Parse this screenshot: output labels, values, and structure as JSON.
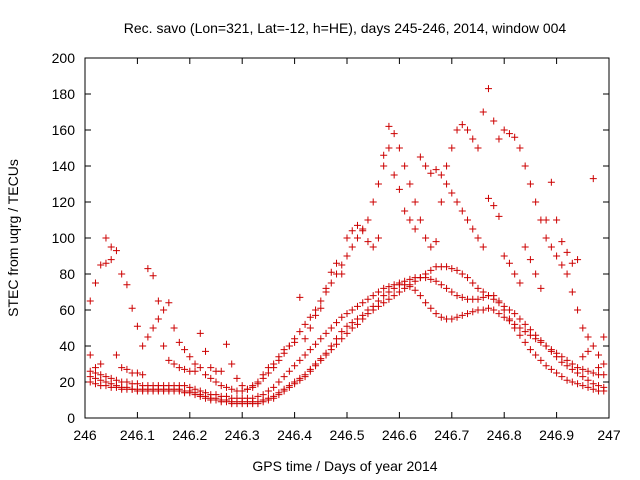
{
  "chart_data": {
    "type": "scatter",
    "title": "Rec. savo (Lon=321, Lat=-12, h=HE), days 245-246, 2014, window 004",
    "xlabel": "GPS time / Days of year 2014",
    "ylabel": "STEC from uqrg / TECUs",
    "xlim": [
      246,
      247
    ],
    "ylim": [
      0,
      200
    ],
    "x_ticks": [
      "246",
      "246.1",
      "246.2",
      "246.3",
      "246.4",
      "246.5",
      "246.6",
      "246.7",
      "246.8",
      "246.9",
      "247"
    ],
    "y_ticks": [
      "0",
      "20",
      "40",
      "60",
      "80",
      "100",
      "120",
      "140",
      "160",
      "180",
      "200"
    ],
    "grid": false,
    "legend": "none",
    "marker": "plus",
    "color": "#cc0000",
    "series": [
      {
        "name": "",
        "x": [
          246.01,
          246.02,
          246.03,
          246.04,
          246.05,
          246.06,
          246.07,
          246.08,
          246.09,
          246.1,
          246.11,
          246.12,
          246.13,
          246.14,
          246.15,
          246.16,
          246.17,
          246.18,
          246.19,
          246.2,
          246.21,
          246.22,
          246.23,
          246.24,
          246.25,
          246.26,
          246.27,
          246.28,
          246.29,
          246.3,
          246.31,
          246.32,
          246.33,
          246.34,
          246.35,
          246.36,
          246.37,
          246.38,
          246.39,
          246.4,
          246.41,
          246.42,
          246.43,
          246.44,
          246.45,
          246.46,
          246.47,
          246.48,
          246.49,
          246.5,
          246.51,
          246.52,
          246.53,
          246.54,
          246.55,
          246.56,
          246.57,
          246.58,
          246.59,
          246.6,
          246.61,
          246.62,
          246.63,
          246.64,
          246.65,
          246.66,
          246.67,
          246.68,
          246.69,
          246.7,
          246.71,
          246.72,
          246.73,
          246.74,
          246.75,
          246.76,
          246.77,
          246.78,
          246.79,
          246.8,
          246.81,
          246.82,
          246.83,
          246.84,
          246.85,
          246.86,
          246.87,
          246.88,
          246.89,
          246.9,
          246.91,
          246.92,
          246.93,
          246.94,
          246.95,
          246.96,
          246.97,
          246.98,
          246.99
        ],
        "y": [
          23,
          22,
          21,
          20,
          19,
          18,
          17,
          17,
          16,
          16,
          16,
          16,
          16,
          16,
          16,
          16,
          16,
          16,
          15,
          15,
          14,
          13,
          12,
          11,
          11,
          10,
          10,
          9,
          9,
          9,
          9,
          9,
          9,
          10,
          11,
          12,
          14,
          16,
          18,
          20,
          22,
          24,
          27,
          30,
          33,
          36,
          40,
          44,
          48,
          51,
          53,
          55,
          57,
          60,
          62,
          65,
          68,
          70,
          72,
          74,
          76,
          77,
          78,
          78,
          78,
          77,
          76,
          74,
          72,
          70,
          68,
          67,
          66,
          66,
          66,
          67,
          68,
          68,
          65,
          60,
          55,
          50,
          46,
          42,
          38,
          35,
          32,
          29,
          27,
          25,
          23,
          21,
          20,
          19,
          18,
          17,
          16,
          15,
          15
        ]
      },
      {
        "name": "",
        "x": [
          246.01,
          246.02,
          246.03,
          246.04,
          246.05,
          246.06,
          246.07,
          246.08,
          246.09,
          246.1,
          246.11,
          246.12,
          246.13,
          246.14,
          246.15,
          246.16,
          246.17,
          246.18,
          246.19,
          246.2,
          246.21,
          246.22,
          246.23,
          246.24,
          246.25,
          246.26,
          246.27,
          246.28,
          246.29,
          246.3,
          246.31,
          246.32,
          246.33,
          246.34,
          246.35,
          246.36,
          246.37,
          246.38,
          246.39,
          246.4,
          246.41,
          246.42,
          246.43,
          246.44,
          246.45,
          246.46,
          246.47,
          246.48,
          246.49,
          246.5,
          246.51,
          246.52,
          246.53,
          246.54,
          246.55,
          246.56,
          246.57,
          246.58,
          246.59,
          246.6,
          246.61,
          246.62,
          246.63,
          246.64,
          246.65,
          246.66,
          246.67,
          246.68,
          246.69,
          246.7,
          246.71,
          246.72,
          246.73,
          246.74,
          246.75,
          246.76,
          246.77,
          246.78,
          246.79,
          246.8,
          246.81,
          246.82,
          246.83,
          246.84,
          246.85,
          246.86,
          246.87,
          246.88,
          246.89,
          246.9,
          246.91,
          246.92,
          246.93,
          246.94,
          246.95,
          246.96,
          246.97,
          246.98,
          246.99
        ],
        "y": [
          26,
          25,
          24,
          23,
          22,
          21,
          20,
          20,
          19,
          19,
          18,
          18,
          18,
          18,
          18,
          18,
          18,
          18,
          18,
          17,
          16,
          15,
          14,
          13,
          13,
          12,
          12,
          11,
          11,
          11,
          11,
          11,
          12,
          13,
          15,
          17,
          20,
          23,
          26,
          29,
          32,
          35,
          38,
          41,
          44,
          47,
          50,
          53,
          56,
          58,
          60,
          62,
          64,
          66,
          68,
          70,
          72,
          73,
          74,
          75,
          74,
          73,
          71,
          68,
          64,
          61,
          58,
          56,
          55,
          55,
          56,
          57,
          58,
          59,
          60,
          60,
          61,
          60,
          58,
          56,
          54,
          52,
          50,
          48,
          46,
          44,
          42,
          40,
          38,
          36,
          34,
          32,
          30,
          28,
          27,
          26,
          25,
          24,
          24
        ]
      },
      {
        "name": "",
        "x": [
          246.01,
          246.02,
          246.03,
          246.04,
          246.05,
          246.06,
          246.07,
          246.08,
          246.09,
          246.1,
          246.11,
          246.12,
          246.13,
          246.14,
          246.15,
          246.16,
          246.17,
          246.18,
          246.19,
          246.2,
          246.21,
          246.22,
          246.23,
          246.24,
          246.25,
          246.26,
          246.27,
          246.28,
          246.29,
          246.3,
          246.31,
          246.32,
          246.33,
          246.34,
          246.35,
          246.36,
          246.37,
          246.38,
          246.39,
          246.4,
          246.41,
          246.42,
          246.43,
          246.44,
          246.45,
          246.46,
          246.47,
          246.48,
          246.49,
          246.5,
          246.51,
          246.52,
          246.53,
          246.54,
          246.55,
          246.56,
          246.57,
          246.58,
          246.59,
          246.6,
          246.61,
          246.62,
          246.63,
          246.64,
          246.65,
          246.66,
          246.67,
          246.68,
          246.69,
          246.7,
          246.71,
          246.72,
          246.73,
          246.74,
          246.75,
          246.76,
          246.77,
          246.78,
          246.79,
          246.8,
          246.81,
          246.82,
          246.83,
          246.84,
          246.85,
          246.86,
          246.87,
          246.88,
          246.89,
          246.9,
          246.91,
          246.92,
          246.93,
          246.94,
          246.95,
          246.96,
          246.97,
          246.98,
          246.99
        ],
        "y": [
          20,
          19,
          18,
          18,
          17,
          17,
          16,
          16,
          16,
          15,
          15,
          15,
          15,
          15,
          15,
          15,
          15,
          15,
          14,
          14,
          13,
          12,
          11,
          10,
          10,
          9,
          9,
          8,
          8,
          8,
          8,
          8,
          8,
          9,
          10,
          11,
          13,
          15,
          17,
          19,
          21,
          23,
          26,
          29,
          32,
          35,
          38,
          41,
          44,
          47,
          50,
          52,
          55,
          58,
          60,
          62,
          64,
          66,
          68,
          70,
          72,
          74,
          76,
          78,
          80,
          82,
          84,
          84,
          84,
          83,
          82,
          80,
          78,
          75,
          72,
          70,
          68,
          66,
          64,
          62,
          60,
          58,
          55,
          52,
          49,
          46,
          43,
          40,
          37,
          34,
          31,
          29,
          27,
          25,
          23,
          21,
          19,
          18,
          17
        ]
      },
      {
        "name": "",
        "x": [
          246.01,
          246.02,
          246.03,
          246.04,
          246.05,
          246.06,
          246.07,
          246.08,
          246.09,
          246.1,
          246.11,
          246.12,
          246.13,
          246.14,
          246.15,
          246.16,
          246.17,
          246.18,
          246.19,
          246.2,
          246.21,
          246.22,
          246.23,
          246.24,
          246.25,
          246.26,
          246.27,
          246.28,
          246.29,
          246.3,
          246.31,
          246.32,
          246.33,
          246.34,
          246.35,
          246.36,
          246.37,
          246.38,
          246.39,
          246.4,
          246.41,
          246.42,
          246.43,
          246.44,
          246.45,
          246.46,
          246.47,
          246.48,
          246.49,
          246.5,
          246.51,
          246.52,
          246.53,
          246.54,
          246.55,
          246.56,
          246.57,
          246.58,
          246.59,
          246.6,
          246.61,
          246.62,
          246.63,
          246.64,
          246.65,
          246.66,
          246.67,
          246.68,
          246.69,
          246.7,
          246.71,
          246.72,
          246.73,
          246.74,
          246.75,
          246.76,
          246.77,
          246.78,
          246.79,
          246.8,
          246.81,
          246.82,
          246.83,
          246.84,
          246.85,
          246.86,
          246.87,
          246.88,
          246.89,
          246.9,
          246.91,
          246.92,
          246.93,
          246.94,
          246.95,
          246.96,
          246.97,
          246.98,
          246.99
        ],
        "y": [
          65,
          75,
          85,
          86,
          88,
          93,
          80,
          74,
          61,
          51,
          40,
          45,
          50,
          55,
          60,
          64,
          50,
          42,
          38,
          34,
          30,
          28,
          24,
          22,
          20,
          18,
          17,
          16,
          15,
          15,
          16,
          17,
          19,
          22,
          25,
          28,
          32,
          36,
          40,
          44,
          48,
          52,
          56,
          60,
          65,
          70,
          75,
          80,
          85,
          90,
          95,
          100,
          105,
          110,
          120,
          130,
          140,
          150,
          158,
          150,
          140,
          130,
          120,
          110,
          100,
          95,
          98,
          120,
          140,
          150,
          160,
          163,
          160,
          155,
          150,
          170,
          183,
          165,
          155,
          160,
          158,
          156,
          150,
          140,
          130,
          120,
          110,
          100,
          95,
          90,
          85,
          80,
          70,
          60,
          50,
          45,
          40,
          35,
          30
        ]
      },
      {
        "name": "",
        "x": [
          246.01,
          246.02,
          246.03,
          246.04,
          246.05,
          246.06,
          246.07,
          246.08,
          246.09,
          246.1,
          246.11,
          246.12,
          246.13,
          246.14,
          246.15,
          246.16,
          246.17,
          246.18,
          246.19,
          246.2,
          246.21,
          246.22,
          246.23,
          246.24,
          246.25,
          246.26,
          246.27,
          246.28,
          246.29,
          246.3,
          246.31,
          246.32,
          246.33,
          246.34,
          246.35,
          246.36,
          246.37,
          246.38,
          246.39,
          246.4,
          246.41,
          246.42,
          246.43,
          246.44,
          246.45,
          246.46,
          246.47,
          246.48,
          246.49,
          246.5,
          246.51,
          246.52,
          246.53,
          246.54,
          246.55,
          246.56,
          246.57,
          246.58,
          246.59,
          246.6,
          246.61,
          246.62,
          246.63,
          246.64,
          246.65,
          246.66,
          246.67,
          246.68,
          246.69,
          246.7,
          246.71,
          246.72,
          246.73,
          246.74,
          246.75,
          246.76,
          246.77,
          246.78,
          246.79,
          246.8,
          246.81,
          246.82,
          246.83,
          246.84,
          246.85,
          246.86,
          246.87,
          246.88,
          246.89,
          246.9,
          246.91,
          246.92,
          246.93,
          246.94,
          246.95,
          246.96,
          246.97,
          246.98,
          246.99
        ],
        "y": [
          35,
          28,
          30,
          100,
          95,
          35,
          28,
          27,
          25,
          25,
          24,
          83,
          79,
          65,
          40,
          32,
          30,
          28,
          27,
          26,
          26,
          47,
          37,
          28,
          26,
          26,
          41,
          30,
          22,
          18,
          16,
          18,
          20,
          24,
          28,
          30,
          34,
          38,
          40,
          42,
          67,
          44,
          50,
          57,
          61,
          72,
          81,
          86,
          80,
          100,
          104,
          107,
          104,
          98,
          95,
          100,
          146,
          162,
          135,
          127,
          115,
          110,
          105,
          145,
          140,
          136,
          138,
          135,
          130,
          125,
          120,
          115,
          110,
          105,
          100,
          95,
          122,
          118,
          112,
          90,
          86,
          80,
          75,
          95,
          88,
          80,
          72,
          110,
          131,
          110,
          98,
          92,
          86,
          88,
          34,
          37,
          133,
          28,
          45
        ]
      }
    ]
  }
}
